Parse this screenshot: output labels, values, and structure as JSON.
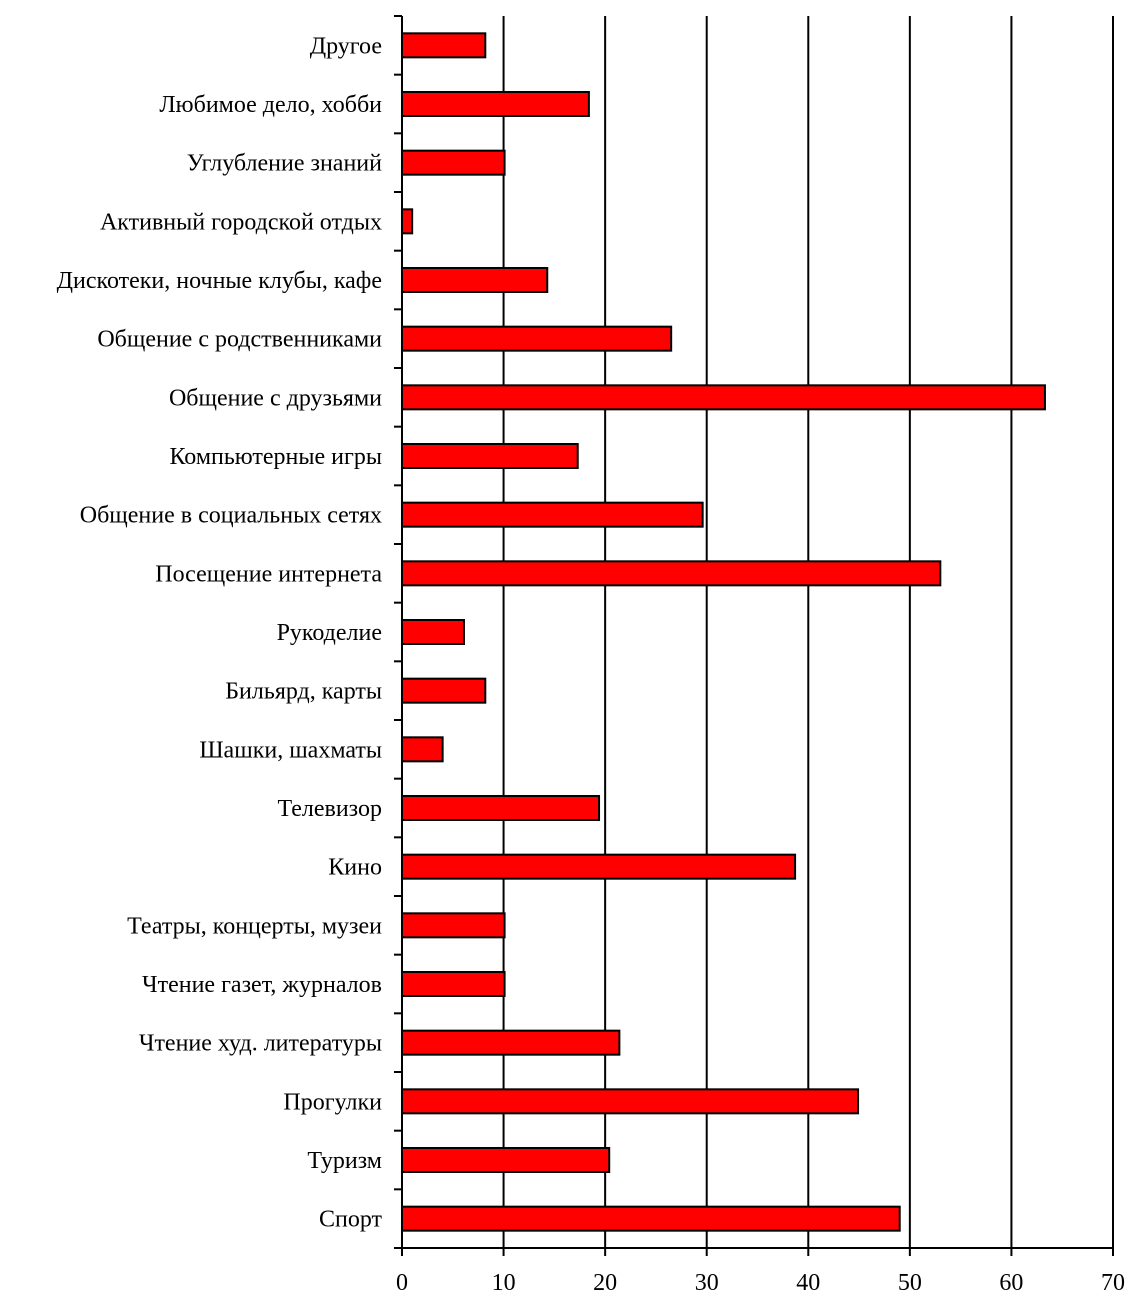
{
  "chart_data": {
    "type": "bar",
    "orientation": "horizontal",
    "categories": [
      "Другое",
      "Любимое дело, хобби",
      "Углубление знаний",
      "Активный городской отдых",
      "Дискотеки, ночные клубы, кафе",
      "Общение с родственниками",
      "Общение с друзьями",
      "Компьютерные игры",
      "Общение в социальных сетях",
      "Посещение интернета",
      "Рукоделие",
      "Бильярд, карты",
      "Шашки, шахматы",
      "Телевизор",
      "Кино",
      "Театры, концерты, музеи",
      "Чтение газет, журналов",
      "Чтение худ. литературы",
      "Прогулки",
      "Туризм",
      "Спорт"
    ],
    "values": [
      8.2,
      18.4,
      10.1,
      1.0,
      14.3,
      26.5,
      63.3,
      17.3,
      29.6,
      53.0,
      6.1,
      8.2,
      4.0,
      19.4,
      38.7,
      10.1,
      10.1,
      21.4,
      44.9,
      20.4,
      49.0
    ],
    "xlim": [
      0,
      70
    ],
    "xticks": [
      "0",
      "10",
      "20",
      "30",
      "40",
      "50",
      "60",
      "70"
    ],
    "grid": "vertical",
    "bar_color": "#ff0000",
    "bar_edge_color": "#000000",
    "title": "",
    "xlabel": "",
    "ylabel": ""
  }
}
